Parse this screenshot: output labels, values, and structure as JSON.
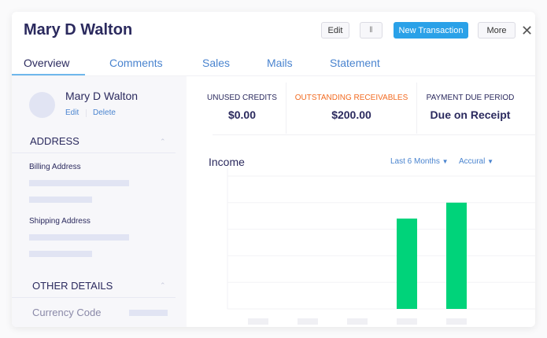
{
  "header": {
    "title": "Mary D Walton",
    "edit_label": "Edit",
    "attach_icon": "paperclip-icon",
    "new_transaction_label": "New Transaction",
    "more_label": "More",
    "close_icon": "close-icon"
  },
  "tabs": [
    {
      "label": "Overview",
      "active": true
    },
    {
      "label": "Comments"
    },
    {
      "label": "Sales"
    },
    {
      "label": "Mails"
    },
    {
      "label": "Statement"
    }
  ],
  "sidebar": {
    "name": "Mary D Walton",
    "edit_label": "Edit",
    "delete_label": "Delete",
    "address_heading": "ADDRESS",
    "billing_label": "Billing Address",
    "shipping_label": "Shipping Address",
    "other_heading": "OTHER DETAILS",
    "currency_label": "Currency Code"
  },
  "stats": [
    {
      "label": "UNUSED CREDITS",
      "value": "$0.00",
      "color": "#2b2a5e"
    },
    {
      "label": "OUTSTANDING RECEIVABLES",
      "value": "$200.00",
      "color": "#f26b21"
    },
    {
      "label": "PAYMENT DUE PERIOD",
      "value": "Due on Receipt",
      "color": "#2b2a5e"
    }
  ],
  "income": {
    "title": "Income",
    "period_label": "Last 6 Months",
    "basis_label": "Accural"
  },
  "chart_data": {
    "type": "bar",
    "title": "Income",
    "categories": [
      "",
      "",
      "",
      "",
      ""
    ],
    "values": [
      0,
      0,
      0,
      3.4,
      4
    ],
    "ylim": [
      0,
      5
    ],
    "grid": true,
    "bar_color": "#00d37a"
  }
}
